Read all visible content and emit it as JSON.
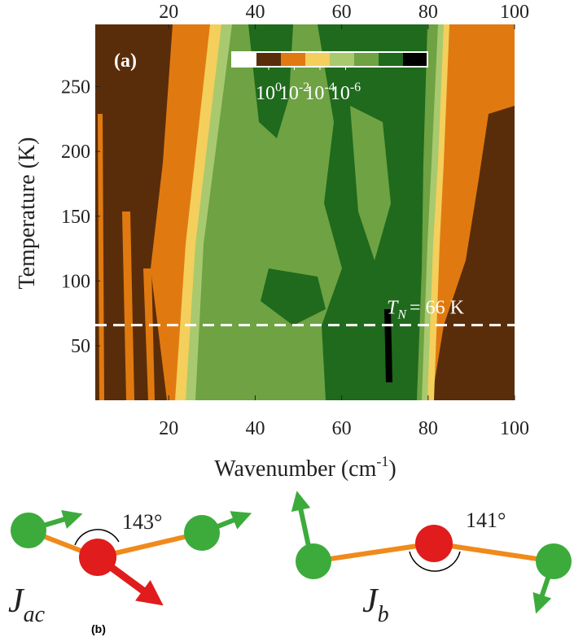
{
  "chart_data": {
    "type": "contour",
    "panel_label": "(a)",
    "xlabel": {
      "text": "Wavenumber (cm",
      "superscript": "-1",
      "suffix": ")"
    },
    "ylabel": "Temperature (K)",
    "xlim": [
      3,
      100
    ],
    "ylim": [
      8,
      298
    ],
    "xticks": [
      20,
      40,
      60,
      80,
      100
    ],
    "x2ticks": [
      20,
      40,
      60,
      80,
      100
    ],
    "yticks": [
      50,
      100,
      150,
      200,
      250
    ],
    "colorbar": {
      "colors": [
        "#ffffff",
        "#5a2d0a",
        "#e07a10",
        "#f4cf5c",
        "#a9c96f",
        "#6ea243",
        "#1f6a1c",
        "#000000"
      ],
      "ticks": [
        {
          "value": 1,
          "base": "10",
          "exponent": "0"
        },
        {
          "value": 0.01,
          "base": "10",
          "exponent": "-2"
        },
        {
          "value": 0.0001,
          "base": "10",
          "exponent": "-4"
        },
        {
          "value": 1e-06,
          "base": "10",
          "exponent": "-6"
        }
      ]
    },
    "annotation": {
      "symbol": "T",
      "subscript": "N",
      "text": "= 66 K",
      "value": 66
    }
  },
  "diagrams": {
    "panel_label": "(b)",
    "items": [
      {
        "symbol": "J",
        "subscript": "ac",
        "angle": "143°"
      },
      {
        "symbol": "J",
        "subscript": "b",
        "angle": "141°"
      }
    ]
  }
}
